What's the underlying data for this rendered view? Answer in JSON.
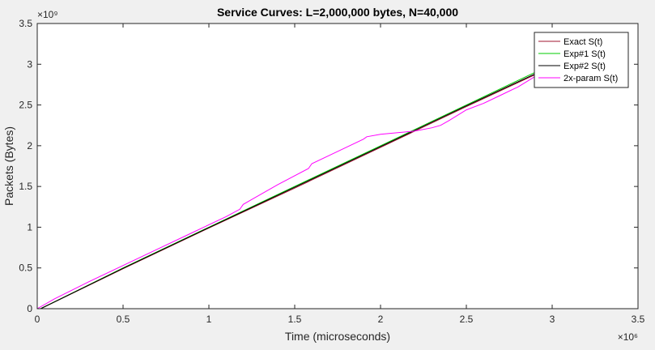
{
  "chart_data": {
    "type": "line",
    "title": "Service Curves: L=2,000,000 bytes, N=40,000",
    "xlabel": "Time (microseconds)",
    "ylabel": "Packets (Bytes)",
    "x_exponent_label": "×10⁶",
    "y_exponent_label": "×10⁹",
    "xlim": [
      0,
      3.5
    ],
    "ylim": [
      0,
      3.5
    ],
    "x_scale": 1000000,
    "y_scale": 1000000000,
    "xticks": [
      0,
      0.5,
      1,
      1.5,
      2,
      2.5,
      3,
      3.5
    ],
    "xtick_labels": [
      "0",
      "0.5",
      "1",
      "1.5",
      "2",
      "2.5",
      "3",
      "3.5"
    ],
    "yticks": [
      0,
      0.5,
      1,
      1.5,
      2,
      2.5,
      3,
      3.5
    ],
    "ytick_labels": [
      "0",
      "0.5",
      "1",
      "1.5",
      "2",
      "2.5",
      "3",
      "3.5"
    ],
    "grid": false,
    "legend_position": "top-right",
    "series": [
      {
        "name": "Exact S(t)",
        "color": "#a2142f",
        "x": [
          0.02,
          0.5,
          1.0,
          1.5,
          2.0,
          2.5,
          2.95
        ],
        "y": [
          0.0,
          0.49,
          0.99,
          1.48,
          1.98,
          2.48,
          2.92
        ]
      },
      {
        "name": "Exp#1 S(t)",
        "color": "#00cc00",
        "x": [
          0.02,
          0.5,
          1.0,
          1.5,
          2.0,
          2.5,
          2.95
        ],
        "y": [
          0.0,
          0.5,
          1.0,
          1.5,
          2.0,
          2.5,
          2.95
        ]
      },
      {
        "name": "Exp#2 S(t)",
        "color": "#000000",
        "x": [
          0.02,
          0.5,
          1.0,
          1.5,
          2.0,
          2.5,
          2.95
        ],
        "y": [
          0.0,
          0.495,
          0.995,
          1.49,
          1.99,
          2.49,
          2.93
        ]
      },
      {
        "name": "2x-param S(t)",
        "color": "#ff00ff",
        "x": [
          0.0,
          0.1,
          0.3,
          0.5,
          0.7,
          0.9,
          1.1,
          1.18,
          1.2,
          1.25,
          1.4,
          1.58,
          1.6,
          1.75,
          1.9,
          1.92,
          2.0,
          2.1,
          2.2,
          2.3,
          2.35,
          2.4,
          2.5,
          2.6,
          2.7,
          2.8,
          2.9
        ],
        "y": [
          0.0,
          0.12,
          0.33,
          0.53,
          0.73,
          0.93,
          1.13,
          1.22,
          1.28,
          1.34,
          1.52,
          1.72,
          1.78,
          1.93,
          2.08,
          2.11,
          2.14,
          2.16,
          2.18,
          2.22,
          2.25,
          2.31,
          2.44,
          2.52,
          2.62,
          2.72,
          2.85
        ]
      }
    ]
  }
}
